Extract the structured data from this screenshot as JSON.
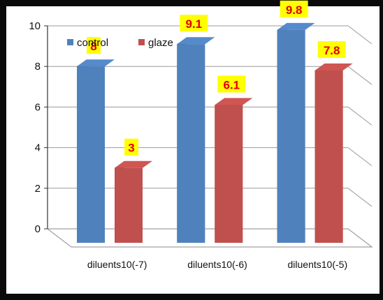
{
  "chart_data": {
    "type": "bar",
    "title": "",
    "xlabel": "",
    "ylabel": "",
    "categories": [
      "diluents10(-7)",
      "diluents10(-6)",
      "diluents10(-5)"
    ],
    "series": [
      {
        "name": "control",
        "values": [
          8,
          9.1,
          9.8
        ],
        "labels": [
          "8",
          "9.1",
          "9.8"
        ],
        "color": "#4f81bd"
      },
      {
        "name": "glaze",
        "values": [
          3,
          6.1,
          7.8
        ],
        "labels": [
          "3",
          "6.1",
          "7.8"
        ],
        "color": "#c0504d"
      }
    ],
    "ylim": [
      0,
      10
    ],
    "yticks": [
      "0",
      "2",
      "4",
      "6",
      "8",
      "10"
    ],
    "grid": true,
    "legend": "top-left",
    "data_label_color": "#e00000",
    "data_label_bg": "#ffff00"
  }
}
